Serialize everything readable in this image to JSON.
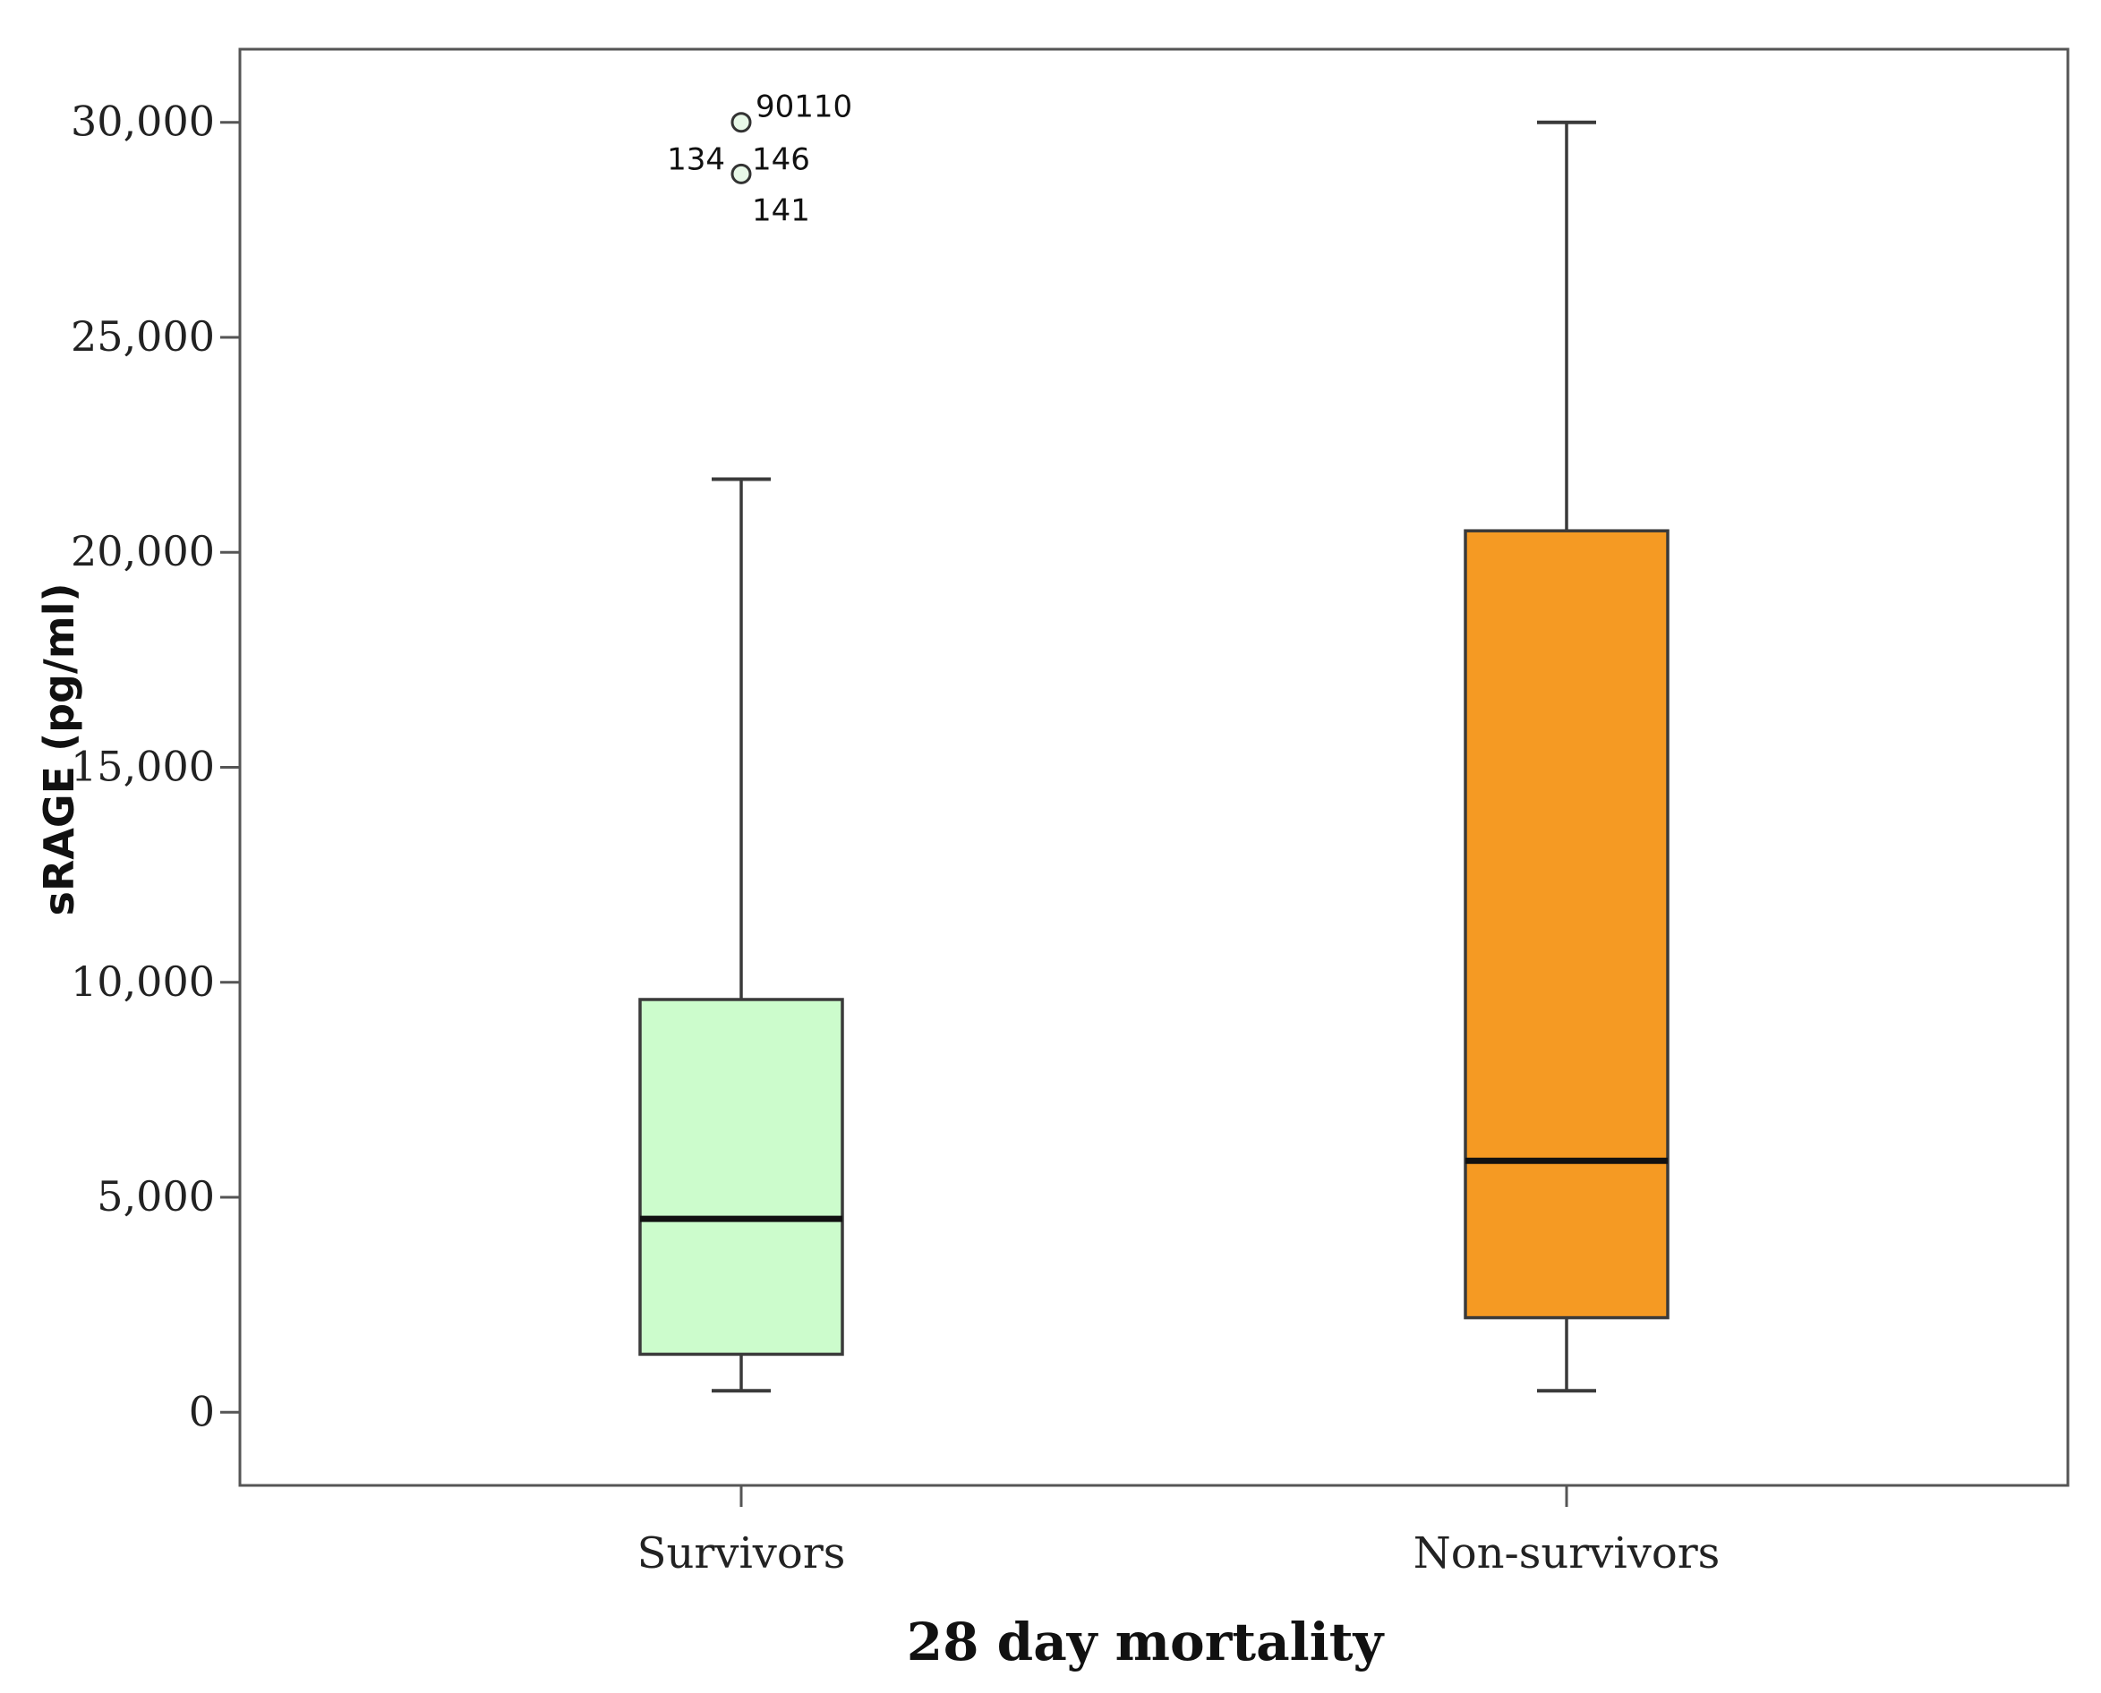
{
  "chart_data": {
    "type": "boxplot",
    "title": "",
    "xlabel": "28 day mortality",
    "ylabel": "sRAGE (pg/ml)",
    "ylim": [
      -1700,
      31700
    ],
    "yticks": [
      0,
      5000,
      10000,
      15000,
      20000,
      25000,
      30000
    ],
    "ytick_labels": [
      "0",
      "5,000",
      "10,000",
      "15,000",
      "20,000",
      "25,000",
      "30,000"
    ],
    "categories": [
      "Survivors",
      "Non-survivors"
    ],
    "colors": {
      "Survivors": "#ccfccc",
      "Non-survivors": "#f59a23",
      "stroke": "#3a3a3a",
      "median": "#111111",
      "outlier": "#4caf50"
    },
    "boxes": [
      {
        "name": "Survivors",
        "whisker_low": 500,
        "q1": 1350,
        "median": 4500,
        "q3": 9600,
        "whisker_high": 21700,
        "outliers": [
          {
            "value": 30000,
            "labels": [
              "90",
              "110"
            ]
          },
          {
            "value": 28800,
            "labels": [
              "134",
              "146",
              "141"
            ]
          }
        ]
      },
      {
        "name": "Non-survivors",
        "whisker_low": 500,
        "q1": 2200,
        "median": 5850,
        "q3": 20500,
        "whisker_high": 30000,
        "outliers": []
      }
    ]
  }
}
